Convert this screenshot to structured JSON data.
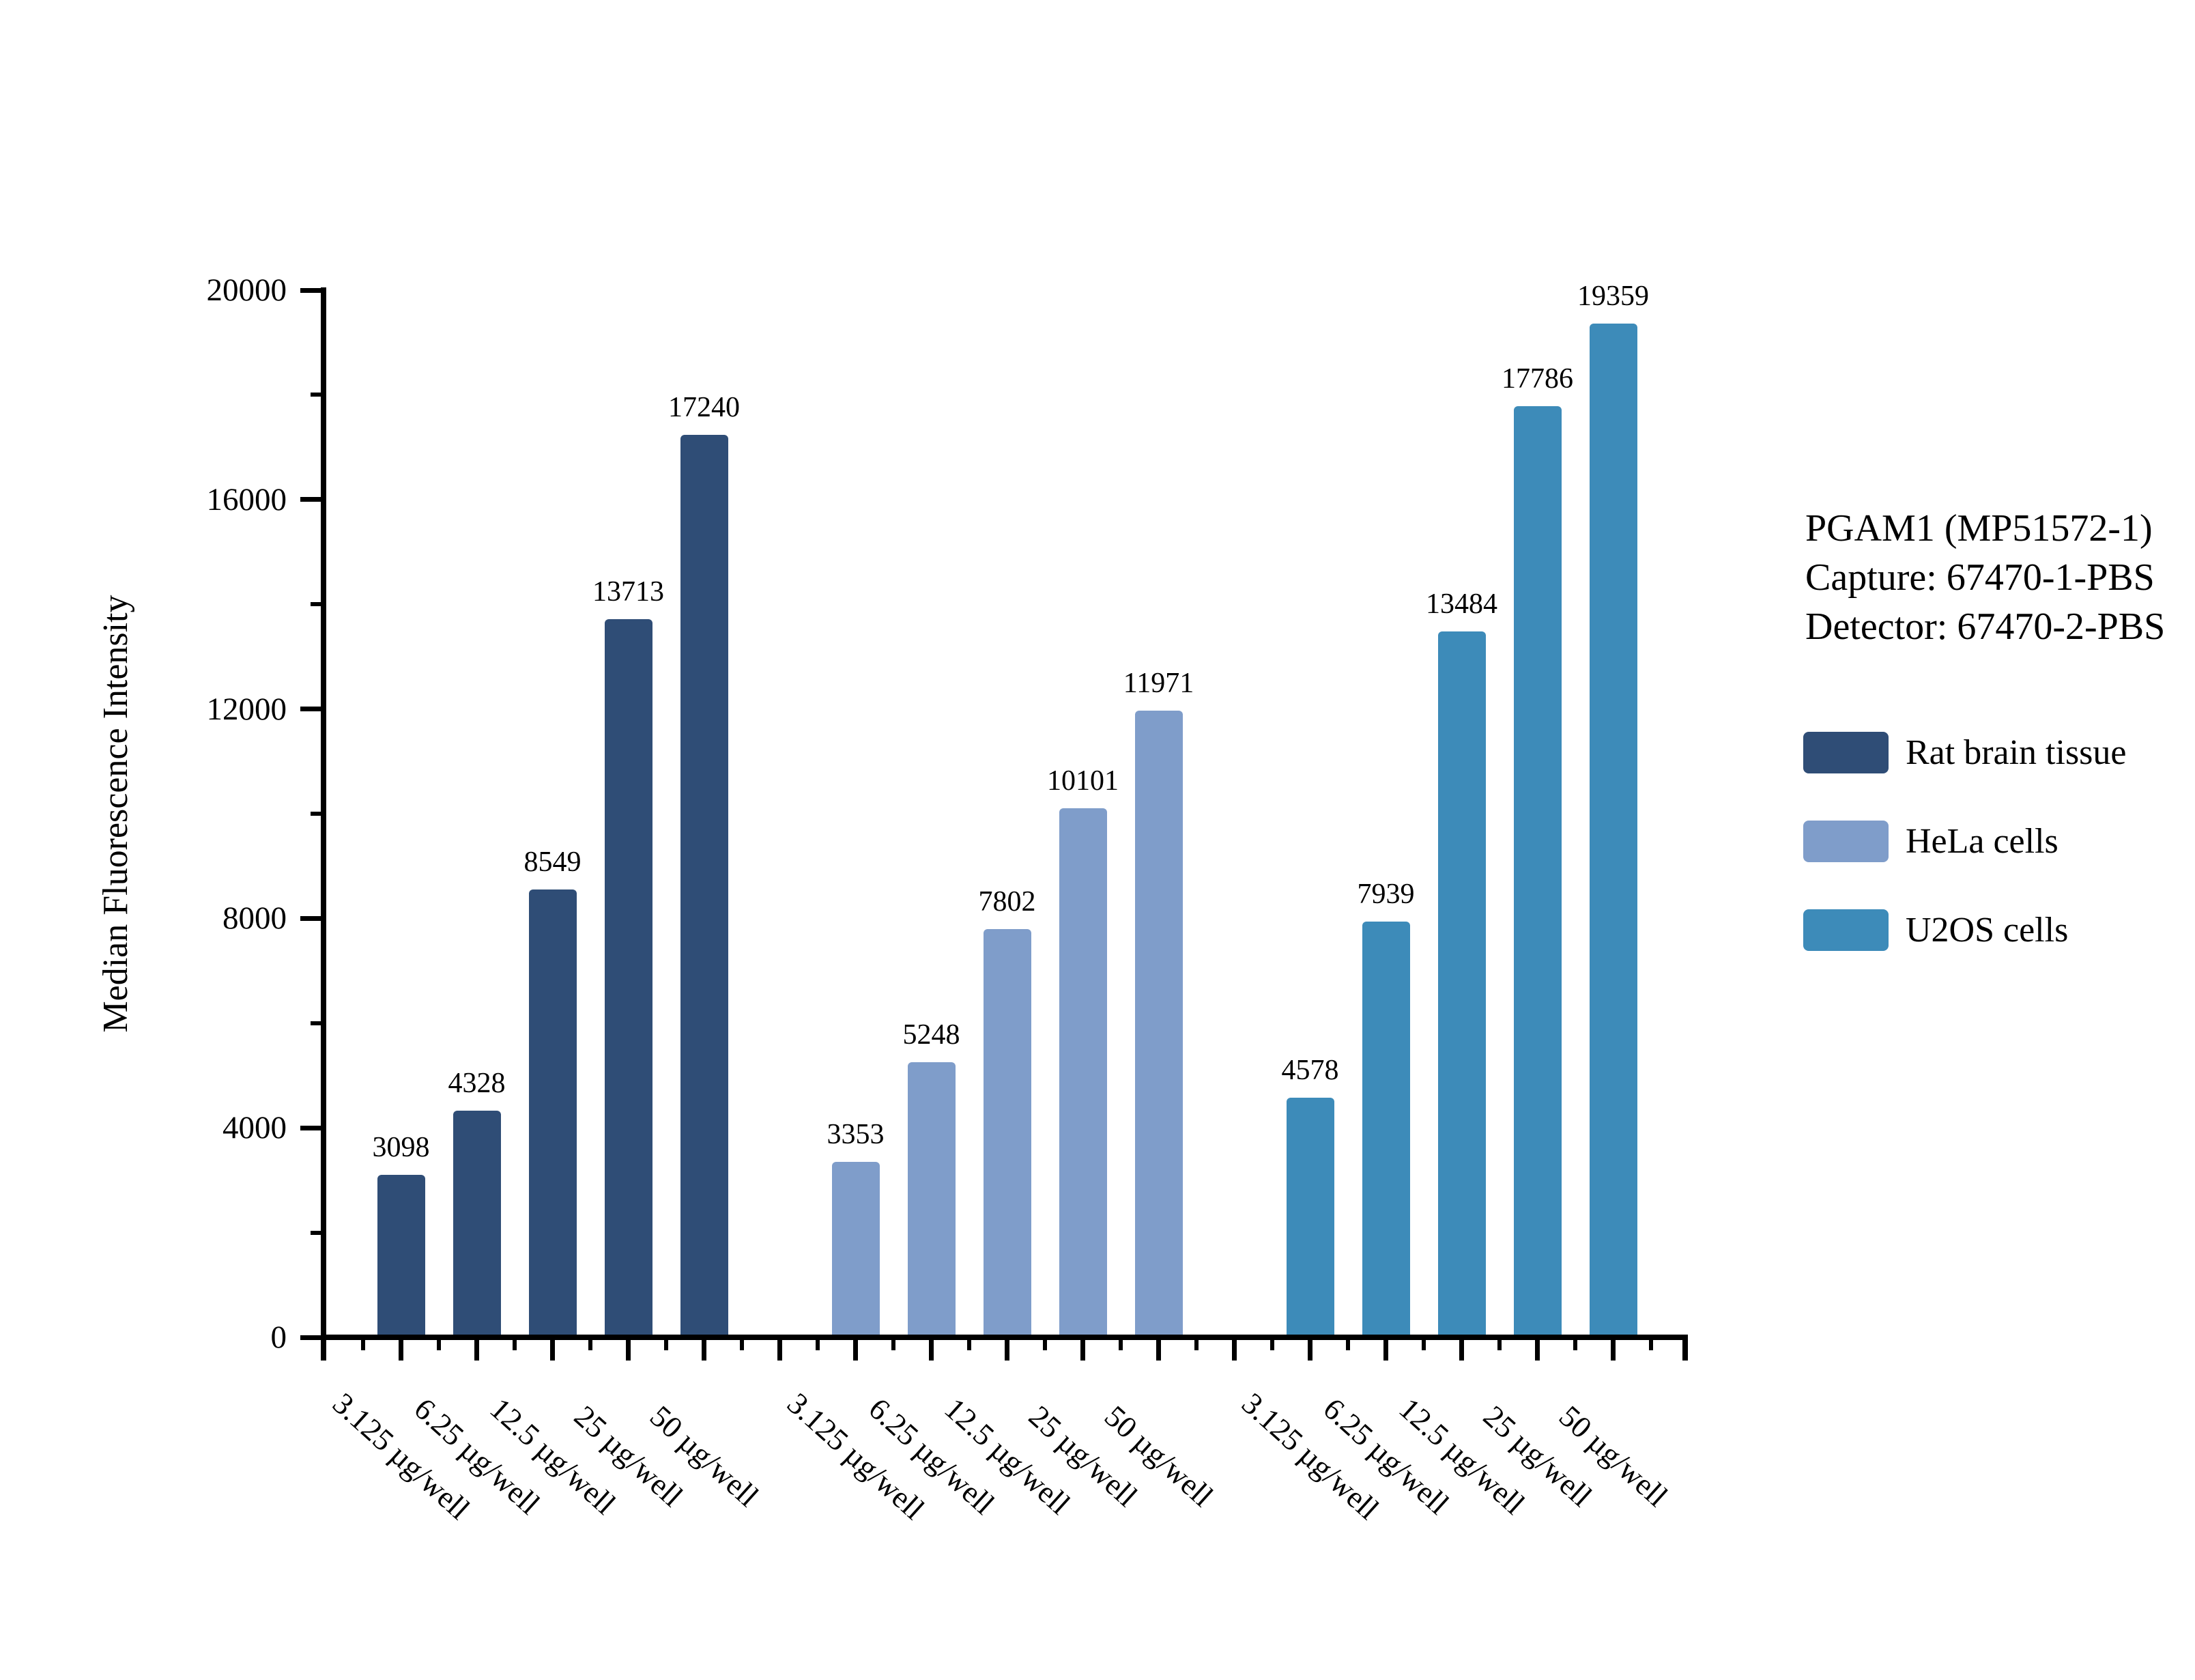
{
  "figure": {
    "annotation": [
      "PGAM1 (MP51572-1)",
      "Capture: 67470-1-PBS",
      "Detector: 67470-2-PBS"
    ]
  },
  "chart_data": {
    "type": "bar",
    "title": "",
    "xlabel": "",
    "ylabel": "Median Fluorescence Intensity",
    "ylim": [
      0,
      20000
    ],
    "y_major_ticks": [
      0,
      4000,
      8000,
      12000,
      16000,
      20000
    ],
    "y_major_tick_labels": [
      "0",
      "4000",
      "8000",
      "12000",
      "16000",
      "20000"
    ],
    "y_minor_tick_step": 2000,
    "grid": false,
    "legend_position": "right",
    "bar_value_labels_shown": true,
    "categories": [
      "3.125 µg/well",
      "6.25 µg/well",
      "12.5 µg/well",
      "25 µg/well",
      "50 µg/well"
    ],
    "series": [
      {
        "name": "Rat brain tissue",
        "color": "#2F4D76",
        "values": [
          3098,
          4328,
          8549,
          13713,
          17240
        ]
      },
      {
        "name": "HeLa cells",
        "color": "#7F9DCA",
        "values": [
          3353,
          5248,
          7802,
          10101,
          11971
        ]
      },
      {
        "name": "U2OS cells",
        "color": "#3D8BB9",
        "values": [
          4578,
          7939,
          13484,
          17786,
          19359
        ]
      }
    ]
  }
}
